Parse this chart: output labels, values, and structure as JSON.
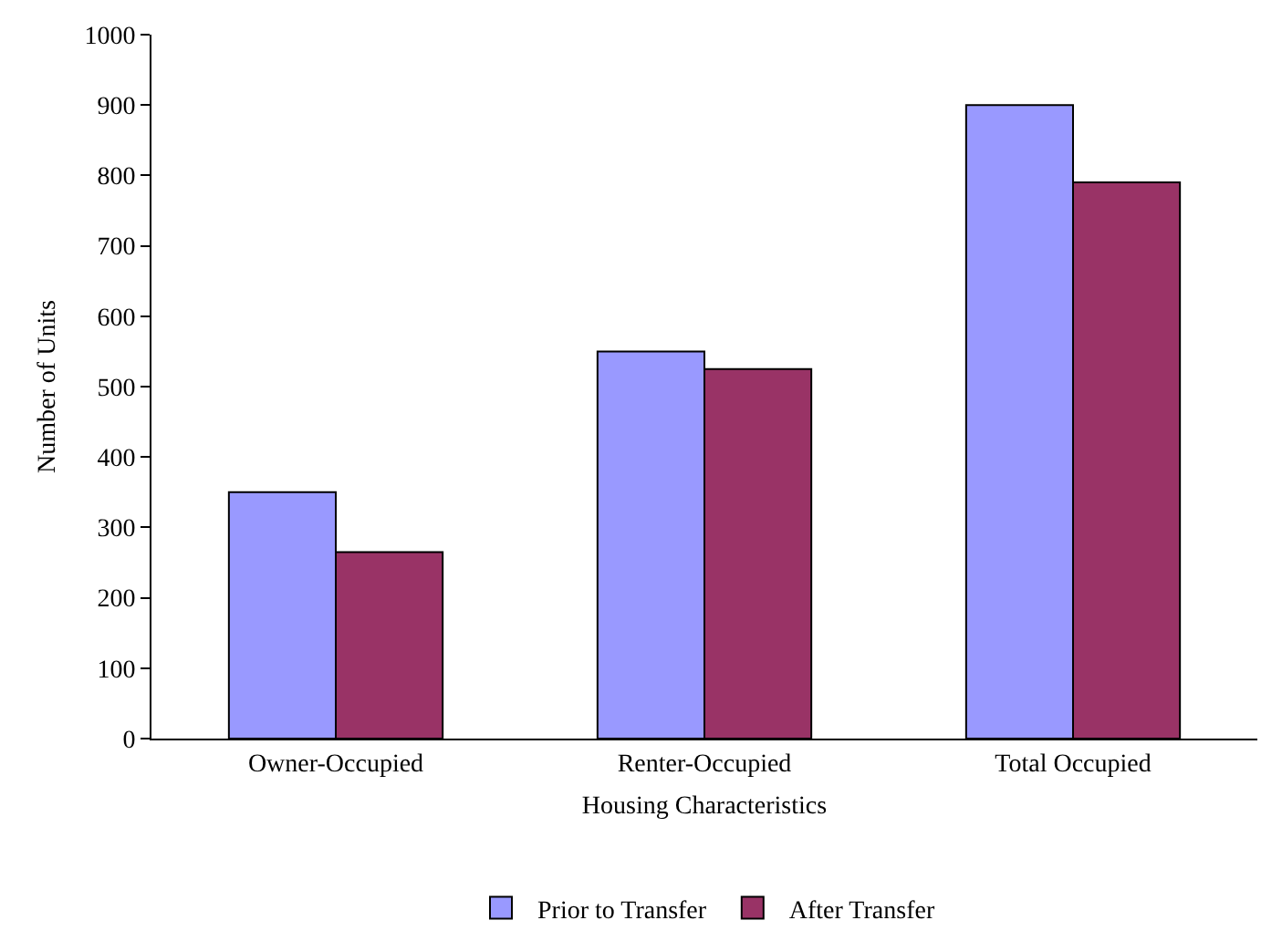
{
  "chart_data": {
    "type": "bar",
    "xlabel": "Housing Characteristics",
    "ylabel": "Number of Units",
    "categories": [
      "Owner-Occupied",
      "Renter-Occupied",
      "Total Occupied"
    ],
    "series": [
      {
        "name": "Prior to Transfer",
        "color": "#9999ff",
        "values": [
          350,
          550,
          900
        ]
      },
      {
        "name": "After Transfer",
        "color": "#993366",
        "values": [
          265,
          525,
          790
        ]
      }
    ],
    "ylim": [
      0,
      1000
    ],
    "yticks": [
      0,
      100,
      200,
      300,
      400,
      500,
      600,
      700,
      800,
      900,
      1000
    ],
    "grid": false,
    "legend": "bottom"
  }
}
